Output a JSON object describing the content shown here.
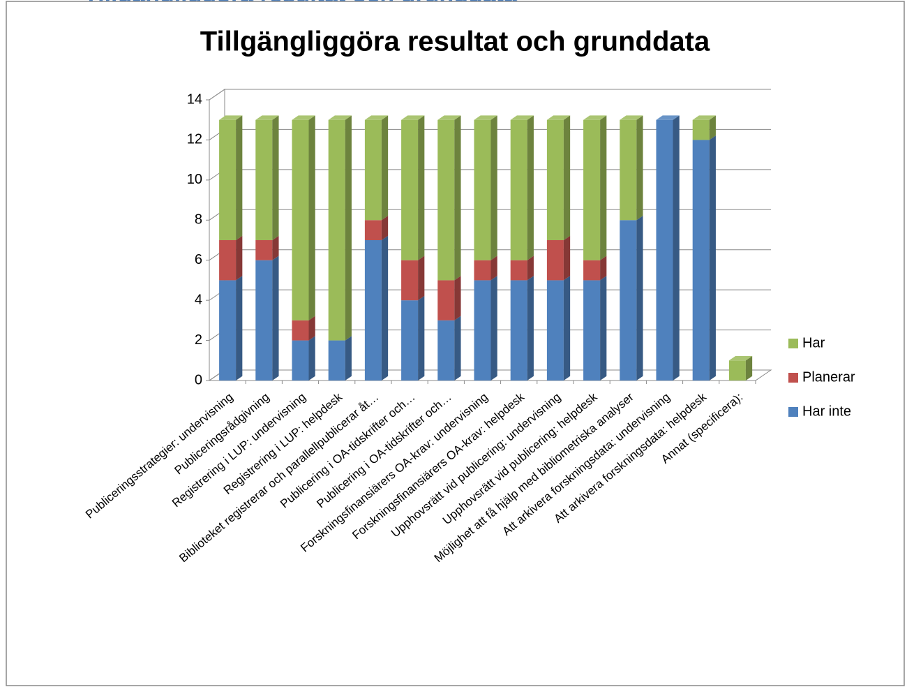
{
  "page_heading": "Tillgängliggöra resultat och grunddata",
  "chart_data": {
    "type": "bar3d_stacked",
    "title": "Tillgängliggöra resultat och grunddata",
    "categories": [
      "Publiceringsstrategier: undervisning",
      "Publiceringsrådgivning",
      "Registrering i LUP: undervisning",
      "Registrering i LUP: helpdesk",
      "Biblioteket registrerar och parallellpublicerar åt…",
      "Publicering i OA-tidskrifter och…",
      "Publicering i OA-tidskrifter och…",
      "Forskningsfinansiärers OA-krav: undervisning",
      "Forskningsfinansiärers OA-krav: helpdesk",
      "Upphovsrätt vid publicering: undervisning",
      "Upphovsrätt vid publicering: helpdesk",
      "Möjlighet att få hjälp med bibliometriska analyser",
      "Att arkivera forskningsdata: undervisning",
      "Att arkivera forskningsdata: helpdesk",
      "Annat (specificera):"
    ],
    "series": [
      {
        "name": "Har inte",
        "color": "#4f81bd",
        "values": [
          5,
          6,
          2,
          2,
          7,
          4,
          3,
          5,
          5,
          5,
          5,
          8,
          13,
          12,
          0
        ]
      },
      {
        "name": "Planerar",
        "color": "#c0504d",
        "values": [
          2,
          1,
          1,
          0,
          1,
          2,
          2,
          1,
          1,
          2,
          1,
          0,
          0,
          0,
          0
        ]
      },
      {
        "name": "Har",
        "color": "#9bbb59",
        "values": [
          6,
          6,
          10,
          11,
          5,
          7,
          8,
          7,
          7,
          6,
          7,
          5,
          0,
          1,
          1
        ]
      }
    ],
    "ylim": [
      0,
      14
    ],
    "yticks": [
      0,
      2,
      4,
      6,
      8,
      10,
      12,
      14
    ],
    "grid": true,
    "legend": "right"
  }
}
